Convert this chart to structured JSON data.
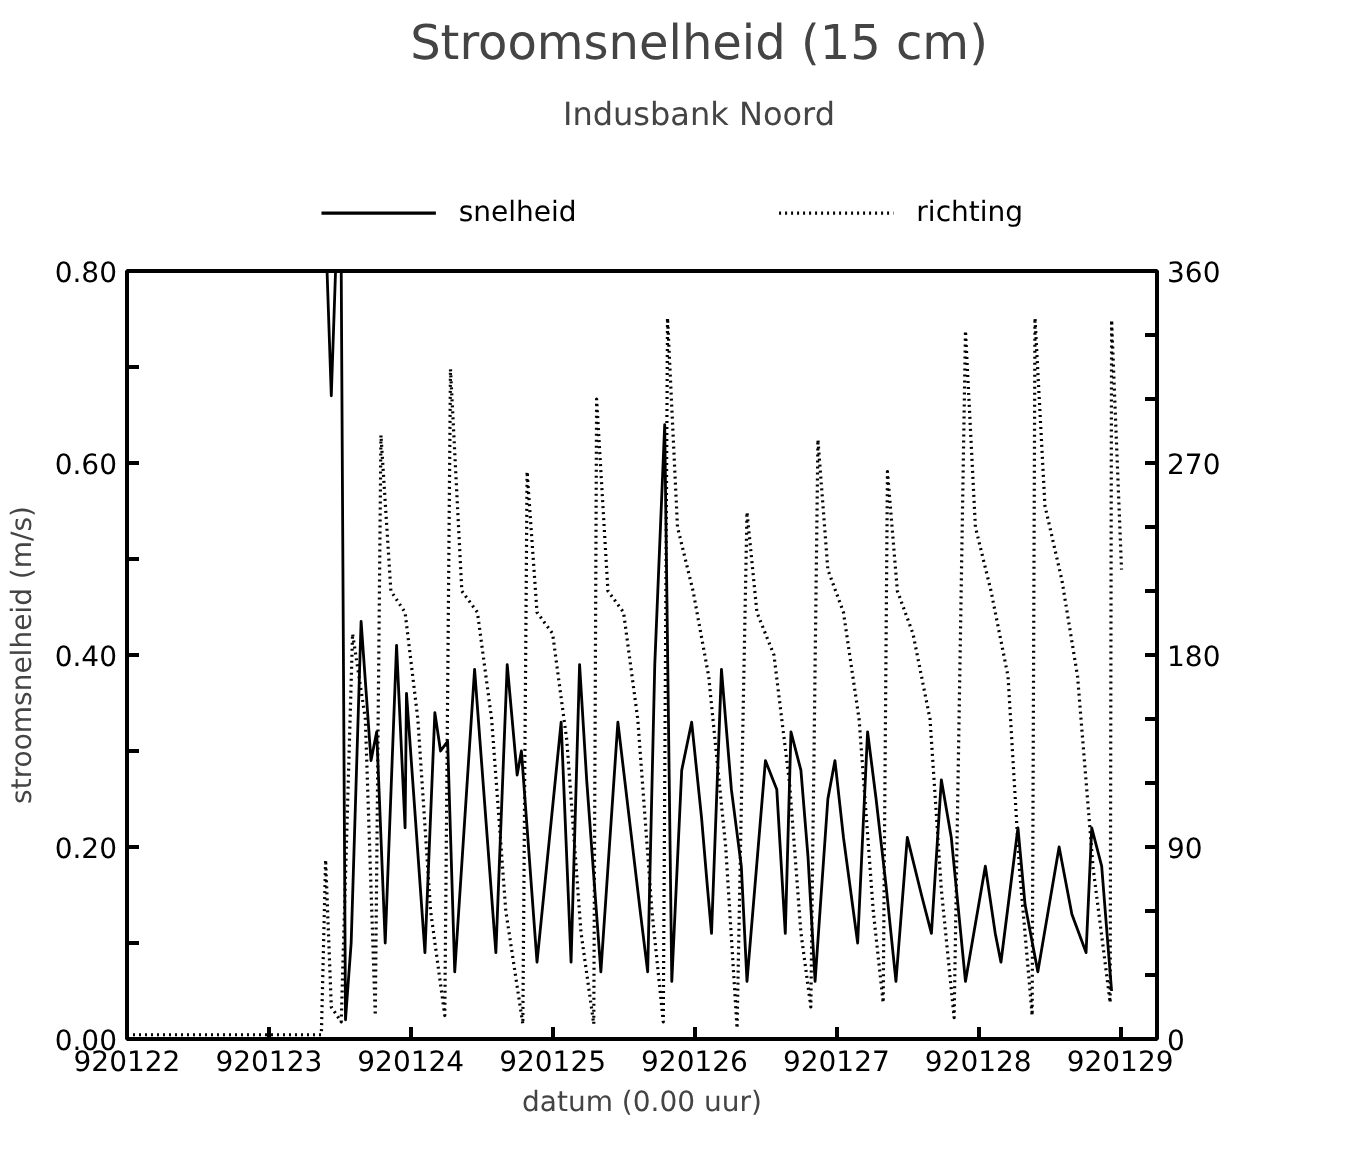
{
  "chart_data": {
    "type": "line",
    "title": "Stroomsnelheid (15 cm)",
    "subtitle": "Indusbank Noord",
    "xlabel": "datum (0.00 uur)",
    "ylabel": "stroomsnelheid (m/s)",
    "xlim": [
      920122,
      920129.26
    ],
    "xticks": [
      920122,
      920123,
      920124,
      920125,
      920126,
      920127,
      920128,
      920129
    ],
    "ylim": [
      0,
      0.8
    ],
    "yticks": [
      {
        "value": 0,
        "label": "0.00"
      },
      {
        "value": 0.1,
        "label": null
      },
      {
        "value": 0.2,
        "label": "0.20"
      },
      {
        "value": 0.3,
        "label": null
      },
      {
        "value": 0.4,
        "label": "0.40"
      },
      {
        "value": 0.5,
        "label": null
      },
      {
        "value": 0.6,
        "label": "0.60"
      },
      {
        "value": 0.7,
        "label": null
      },
      {
        "value": 0.8,
        "label": "0.80"
      }
    ],
    "y2lim": [
      0,
      360
    ],
    "y2ticks": [
      0,
      {
        "value": 30,
        "label": null
      },
      {
        "value": 60,
        "label": null
      },
      90,
      {
        "value": 120,
        "label": null
      },
      {
        "value": 150,
        "label": null
      },
      180,
      {
        "value": 210,
        "label": null
      },
      {
        "value": 240,
        "label": null
      },
      270,
      {
        "value": 300,
        "label": null
      },
      {
        "value": 330,
        "label": null
      },
      360
    ],
    "grid": false,
    "legend": "top",
    "marker": "none",
    "series": [
      {
        "name": "snelheid",
        "color": "#000000",
        "line_style": "solid",
        "x": [
          920123.41,
          920123.44,
          920123.47,
          920123.51,
          920123.54,
          920123.58,
          920123.65,
          920123.72,
          920123.76,
          920123.82,
          920123.9,
          920123.96,
          920123.97,
          920124.1,
          920124.17,
          920124.21,
          920124.26,
          920124.31,
          920124.45,
          920124.6,
          920124.68,
          920124.75,
          920124.78,
          920124.89,
          920125.06,
          920125.13,
          920125.19,
          920125.24,
          920125.34,
          920125.46,
          920125.62,
          920125.67,
          920125.72,
          920125.79,
          920125.84,
          920125.91,
          920125.98,
          920126.05,
          920126.09,
          920126.12,
          920126.19,
          920126.26,
          920126.33,
          920126.37,
          920126.5,
          920126.58,
          920126.64,
          920126.68,
          920126.75,
          920126.8,
          920126.85,
          920126.94,
          920126.99,
          920127.05,
          920127.15,
          920127.22,
          920127.28,
          920127.35,
          920127.42,
          920127.5,
          920127.6,
          920127.67,
          920127.74,
          920127.81,
          920127.91,
          920128.05,
          920128.12,
          920128.16,
          920128.28,
          920128.33,
          920128.42,
          920128.57,
          920128.66,
          920128.76,
          920128.8,
          920128.87,
          920128.94
        ],
        "values": [
          0.8,
          0.67,
          0.8,
          0.8,
          0.02,
          0.1,
          0.435,
          0.29,
          0.32,
          0.1,
          0.41,
          0.22,
          0.36,
          0.09,
          0.34,
          0.3,
          0.31,
          0.07,
          0.385,
          0.09,
          0.39,
          0.275,
          0.3,
          0.08,
          0.33,
          0.08,
          0.39,
          0.27,
          0.07,
          0.33,
          0.13,
          0.07,
          0.39,
          0.64,
          0.06,
          0.28,
          0.33,
          0.23,
          0.16,
          0.11,
          0.385,
          0.26,
          0.18,
          0.06,
          0.29,
          0.26,
          0.11,
          0.32,
          0.28,
          0.19,
          0.06,
          0.25,
          0.29,
          0.21,
          0.1,
          0.32,
          0.25,
          0.16,
          0.06,
          0.21,
          0.15,
          0.11,
          0.27,
          0.21,
          0.06,
          0.18,
          0.11,
          0.08,
          0.22,
          0.14,
          0.07,
          0.2,
          0.13,
          0.09,
          0.22,
          0.18,
          0.05
        ]
      },
      {
        "name": "richting",
        "color": "#000000",
        "line_style": "dotted",
        "axis": "y2",
        "x": [
          920122.0,
          920123.37,
          920123.4,
          920123.44,
          920123.51,
          920123.59,
          920123.68,
          920123.75,
          920123.79,
          920123.86,
          920123.96,
          920124.05,
          920124.14,
          920124.24,
          920124.28,
          920124.36,
          920124.47,
          920124.57,
          920124.67,
          920124.79,
          920124.82,
          920124.89,
          920125.0,
          920125.1,
          920125.2,
          920125.29,
          920125.31,
          920125.39,
          920125.5,
          920125.6,
          920125.7,
          920125.78,
          920125.81,
          920125.88,
          920125.99,
          920126.1,
          920126.22,
          920126.3,
          920126.37,
          920126.44,
          920126.56,
          920126.67,
          920126.75,
          920126.82,
          920126.87,
          920126.94,
          920127.05,
          920127.16,
          920127.26,
          920127.33,
          920127.36,
          920127.43,
          920127.54,
          920127.66,
          920127.74,
          920127.83,
          920127.91,
          920127.98,
          920128.09,
          920128.21,
          920128.29,
          920128.38,
          920128.4,
          920128.47,
          920128.59,
          920128.7,
          920128.81,
          920128.93,
          920128.94,
          920129.01
        ],
        "values": [
          2,
          2,
          84,
          15,
          8,
          190,
          150,
          11,
          283,
          210,
          200,
          150,
          60,
          11,
          314,
          210,
          200,
          150,
          60,
          7,
          266,
          200,
          190,
          140,
          50,
          7,
          300,
          210,
          200,
          150,
          60,
          8,
          338,
          240,
          210,
          170,
          90,
          5,
          247,
          200,
          180,
          120,
          50,
          15,
          281,
          220,
          200,
          150,
          60,
          17,
          266,
          210,
          190,
          150,
          70,
          10,
          332,
          240,
          210,
          170,
          80,
          11,
          338,
          250,
          215,
          170,
          80,
          17,
          337,
          220
        ]
      }
    ]
  }
}
